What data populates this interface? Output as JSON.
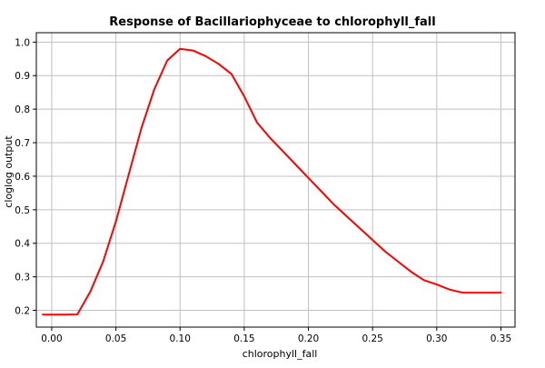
{
  "chart_data": {
    "type": "line",
    "title": "Response of Bacillariophyceae to chlorophyll_fall",
    "xlabel": "chlorophyll_fall",
    "ylabel": "cloglog output",
    "xlim": [
      -0.012,
      0.361
    ],
    "ylim": [
      0.15,
      1.028
    ],
    "xticks": [
      "0.00",
      "0.05",
      "0.10",
      "0.15",
      "0.20",
      "0.25",
      "0.30",
      "0.35"
    ],
    "yticks": [
      "0.2",
      "0.3",
      "0.4",
      "0.5",
      "0.6",
      "0.7",
      "0.8",
      "0.9",
      "1.0"
    ],
    "grid": true,
    "series": [
      {
        "color": "#ff0000",
        "x": [
          -0.007,
          0.0,
          0.01,
          0.02,
          0.03,
          0.04,
          0.05,
          0.06,
          0.07,
          0.08,
          0.09,
          0.1,
          0.11,
          0.12,
          0.13,
          0.14,
          0.15,
          0.16,
          0.17,
          0.18,
          0.19,
          0.2,
          0.21,
          0.22,
          0.23,
          0.24,
          0.25,
          0.26,
          0.27,
          0.28,
          0.29,
          0.3,
          0.31,
          0.32,
          0.33,
          0.34,
          0.35
        ],
        "y": [
          0.187,
          0.187,
          0.187,
          0.188,
          0.255,
          0.345,
          0.465,
          0.605,
          0.745,
          0.86,
          0.945,
          0.98,
          0.975,
          0.958,
          0.935,
          0.905,
          0.838,
          0.76,
          0.715,
          0.675,
          0.635,
          0.595,
          0.555,
          0.515,
          0.48,
          0.445,
          0.41,
          0.375,
          0.345,
          0.315,
          0.29,
          0.277,
          0.262,
          0.253,
          0.253,
          0.253,
          0.253
        ]
      }
    ]
  }
}
